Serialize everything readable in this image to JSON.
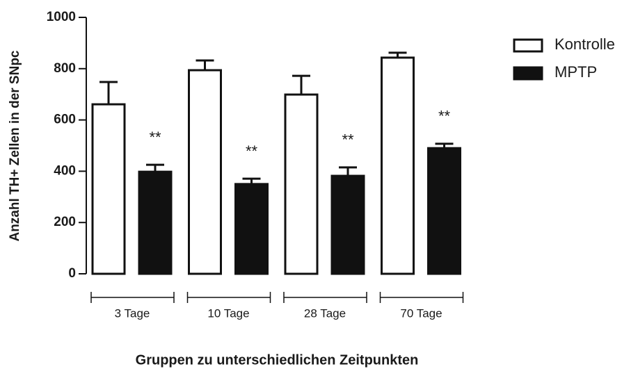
{
  "chart_data": {
    "type": "bar",
    "categories": [
      "3 Tage",
      "10 Tage",
      "28 Tage",
      "70 Tage"
    ],
    "series": [
      {
        "name": "Kontrolle",
        "color": "#ffffff",
        "values": [
          661,
          794,
          699,
          843
        ],
        "errors": [
          87,
          38,
          73,
          19
        ]
      },
      {
        "name": "MPTP",
        "color": "#111111",
        "values": [
          398,
          350,
          382,
          490
        ],
        "errors": [
          27,
          21,
          33,
          17
        ]
      }
    ],
    "annotations": [
      "**",
      "**",
      "**",
      "**"
    ],
    "ylabel": "Anzahl TH+ Zellen in der SNpc",
    "xlabel": "Gruppen zu unterschiedlichen Zeitpunkten",
    "ylim": [
      0,
      1000
    ],
    "yticks": [
      0,
      200,
      400,
      600,
      800,
      1000
    ],
    "legend": "right"
  }
}
